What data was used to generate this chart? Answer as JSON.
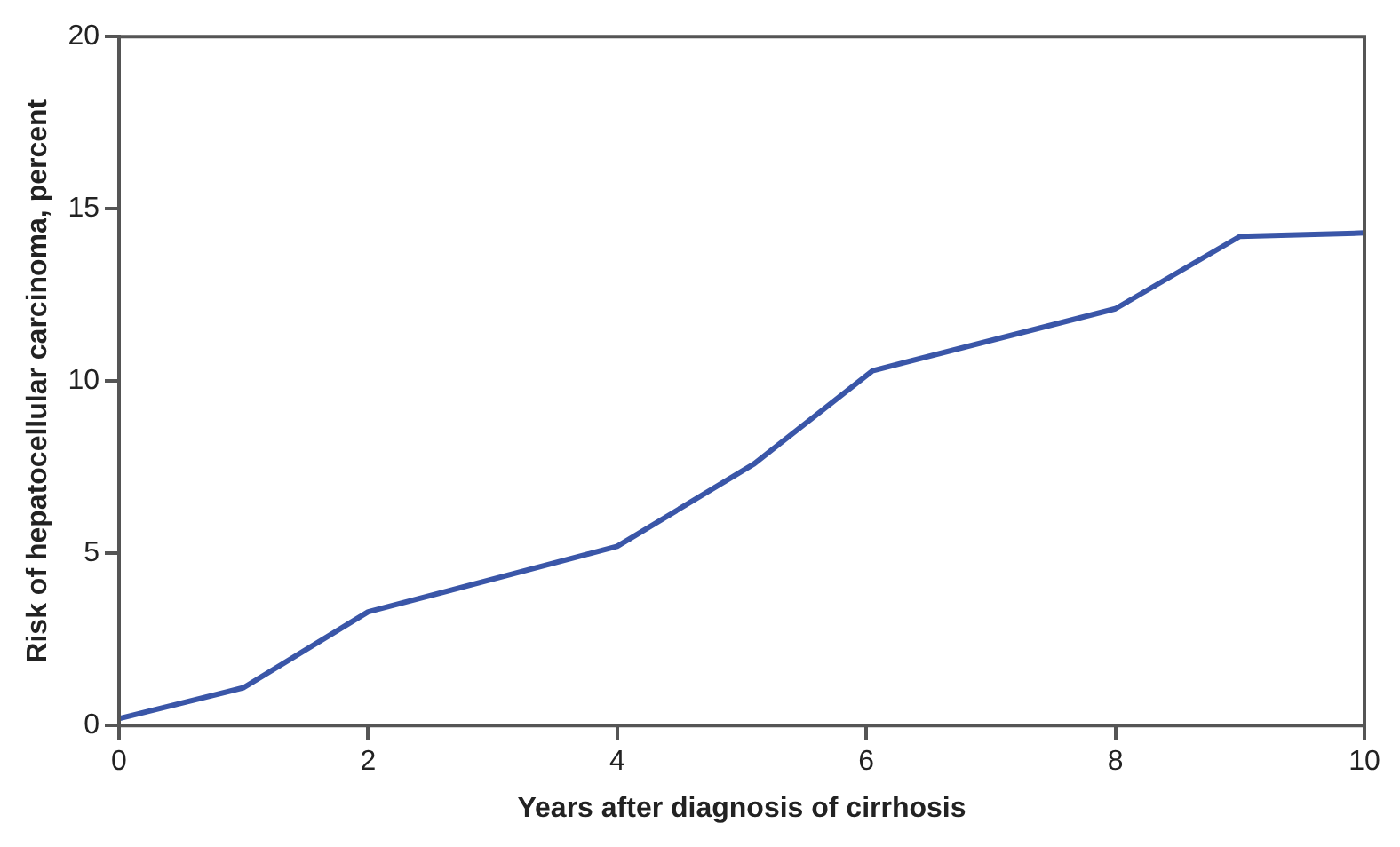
{
  "chart_data": {
    "type": "line",
    "xlabel": "Years after diagnosis of cirrhosis",
    "ylabel": "Risk of hepatocellular carcinoma, percent",
    "x": [
      0,
      1,
      2,
      4,
      5.1,
      6.05,
      8,
      9,
      10
    ],
    "series": [
      {
        "color": "#3a56a8",
        "values": [
          0.2,
          1.1,
          3.3,
          5.2,
          7.6,
          10.3,
          12.1,
          14.2,
          14.3
        ]
      }
    ],
    "xlim": [
      0,
      10
    ],
    "xticks": [
      0,
      2,
      4,
      6,
      8,
      10
    ],
    "ylim": [
      0,
      20
    ],
    "yticks": [
      0,
      5,
      10,
      15,
      20
    ],
    "grid": false,
    "legend": false,
    "marker": "none",
    "line_style": "solid"
  }
}
